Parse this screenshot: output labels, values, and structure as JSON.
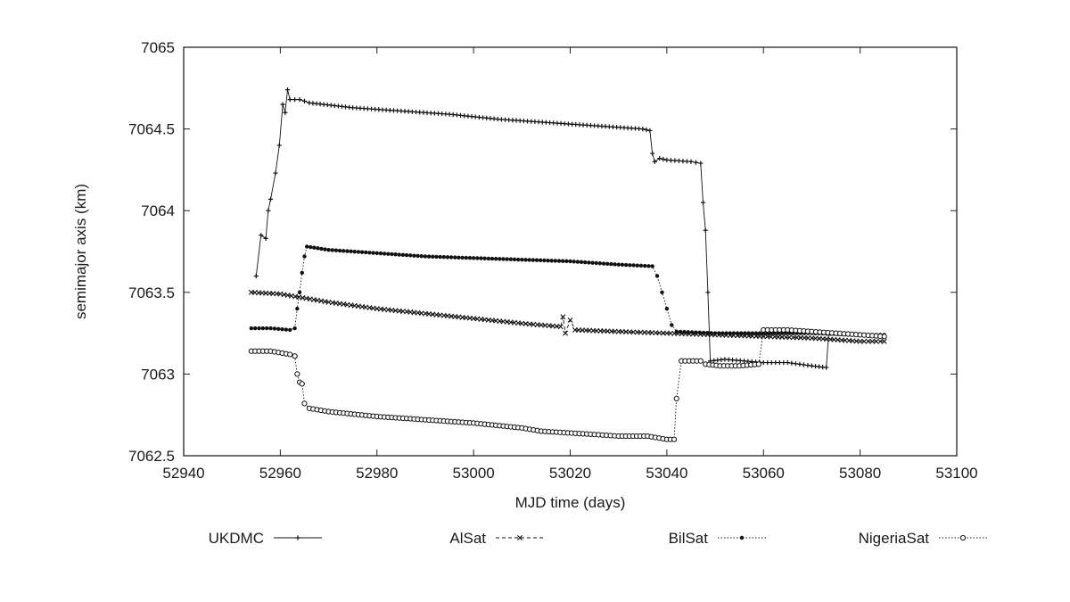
{
  "chart_data": {
    "type": "line",
    "title": "",
    "xlabel": "MJD time (days)",
    "ylabel": "semimajor axis (km)",
    "xlim": [
      52940,
      53100
    ],
    "ylim": [
      7062.5,
      7065
    ],
    "xticks": [
      52940,
      52960,
      52980,
      53000,
      53020,
      53040,
      53060,
      53080,
      53100
    ],
    "yticks": [
      7062.5,
      7063,
      7063.5,
      7064,
      7064.5,
      7065
    ],
    "ytick_labels": [
      "7062.5",
      "7063",
      "7063.5",
      "7064",
      "7064.5",
      "7065"
    ],
    "grid": false,
    "legend_position": "bottom",
    "series": [
      {
        "name": "UKDMC",
        "line": "solid",
        "marker": "plus",
        "points": [
          [
            52955,
            7063.6
          ],
          [
            52956,
            7063.85
          ],
          [
            52957,
            7063.83
          ],
          [
            52957.5,
            7064.0
          ],
          [
            52958,
            7064.07
          ],
          [
            52959,
            7064.23
          ],
          [
            52959.8,
            7064.4
          ],
          [
            52960.5,
            7064.65
          ],
          [
            52961,
            7064.6
          ],
          [
            52961.5,
            7064.74
          ],
          [
            52962,
            7064.68
          ],
          [
            52964,
            7064.68
          ],
          [
            52966,
            7064.66
          ],
          [
            52975,
            7064.63
          ],
          [
            52985,
            7064.61
          ],
          [
            52995,
            7064.59
          ],
          [
            53005,
            7064.56
          ],
          [
            53015,
            7064.54
          ],
          [
            53025,
            7064.52
          ],
          [
            53035,
            7064.5
          ],
          [
            53036.5,
            7064.49
          ],
          [
            53037,
            7064.35
          ],
          [
            53037.5,
            7064.3
          ],
          [
            53038.5,
            7064.32
          ],
          [
            53040,
            7064.31
          ],
          [
            53045,
            7064.3
          ],
          [
            53047,
            7064.29
          ],
          [
            53047.5,
            7064.05
          ],
          [
            53048,
            7063.88
          ],
          [
            53048.5,
            7063.5
          ],
          [
            53049,
            7063.08
          ],
          [
            53052,
            7063.09
          ],
          [
            53056,
            7063.08
          ],
          [
            53060,
            7063.07
          ],
          [
            53065,
            7063.07
          ],
          [
            53070,
            7063.05
          ],
          [
            53073,
            7063.04
          ],
          [
            53073.5,
            7063.25
          ],
          [
            53080,
            7063.24
          ],
          [
            53085,
            7063.23
          ]
        ]
      },
      {
        "name": "AlSat",
        "line": "dashed",
        "marker": "x",
        "points": [
          [
            52954,
            7063.5
          ],
          [
            52960,
            7063.49
          ],
          [
            52970,
            7063.44
          ],
          [
            52980,
            7063.4
          ],
          [
            52990,
            7063.37
          ],
          [
            53000,
            7063.34
          ],
          [
            53010,
            7063.31
          ],
          [
            53018,
            7063.29
          ],
          [
            53018.5,
            7063.35
          ],
          [
            53019,
            7063.25
          ],
          [
            53020,
            7063.33
          ],
          [
            53021,
            7063.27
          ],
          [
            53030,
            7063.26
          ],
          [
            53040,
            7063.25
          ],
          [
            53050,
            7063.24
          ],
          [
            53060,
            7063.23
          ],
          [
            53070,
            7063.22
          ],
          [
            53080,
            7063.2
          ],
          [
            53085,
            7063.2
          ]
        ]
      },
      {
        "name": "BilSat",
        "line": "dotted",
        "marker": "filled-circle",
        "points": [
          [
            52954,
            7063.28
          ],
          [
            52958,
            7063.28
          ],
          [
            52962,
            7063.27
          ],
          [
            52963,
            7063.28
          ],
          [
            52963.5,
            7063.4
          ],
          [
            52964,
            7063.5
          ],
          [
            52964.5,
            7063.62
          ],
          [
            52965,
            7063.72
          ],
          [
            52965.5,
            7063.78
          ],
          [
            52970,
            7063.76
          ],
          [
            52980,
            7063.74
          ],
          [
            52990,
            7063.72
          ],
          [
            53000,
            7063.71
          ],
          [
            53010,
            7063.7
          ],
          [
            53020,
            7063.69
          ],
          [
            53030,
            7063.67
          ],
          [
            53037,
            7063.66
          ],
          [
            53038,
            7063.6
          ],
          [
            53039,
            7063.5
          ],
          [
            53040,
            7063.4
          ],
          [
            53041,
            7063.3
          ],
          [
            53042,
            7063.26
          ],
          [
            53050,
            7063.25
          ],
          [
            53060,
            7063.25
          ],
          [
            53070,
            7063.25
          ],
          [
            53080,
            7063.24
          ],
          [
            53085,
            7063.24
          ]
        ]
      },
      {
        "name": "NigeriaSat",
        "line": "dotted",
        "marker": "open-circle",
        "points": [
          [
            52954,
            7063.14
          ],
          [
            52958,
            7063.14
          ],
          [
            52962,
            7063.12
          ],
          [
            52963,
            7063.11
          ],
          [
            52963.5,
            7063.0
          ],
          [
            52964,
            7062.95
          ],
          [
            52964.5,
            7062.94
          ],
          [
            52965,
            7062.82
          ],
          [
            52966,
            7062.79
          ],
          [
            52970,
            7062.77
          ],
          [
            52980,
            7062.74
          ],
          [
            52990,
            7062.72
          ],
          [
            53000,
            7062.7
          ],
          [
            53010,
            7062.67
          ],
          [
            53014,
            7062.65
          ],
          [
            53025,
            7062.63
          ],
          [
            53030,
            7062.62
          ],
          [
            53036,
            7062.62
          ],
          [
            53040,
            7062.6
          ],
          [
            53041.5,
            7062.6
          ],
          [
            53042,
            7062.85
          ],
          [
            53043,
            7063.08
          ],
          [
            53047,
            7063.08
          ],
          [
            53048,
            7063.06
          ],
          [
            53051,
            7063.05
          ],
          [
            53055,
            7063.05
          ],
          [
            53059,
            7063.06
          ],
          [
            53060,
            7063.27
          ],
          [
            53065,
            7063.27
          ],
          [
            53070,
            7063.26
          ],
          [
            53075,
            7063.25
          ],
          [
            53080,
            7063.24
          ],
          [
            53085,
            7063.23
          ]
        ]
      }
    ]
  }
}
